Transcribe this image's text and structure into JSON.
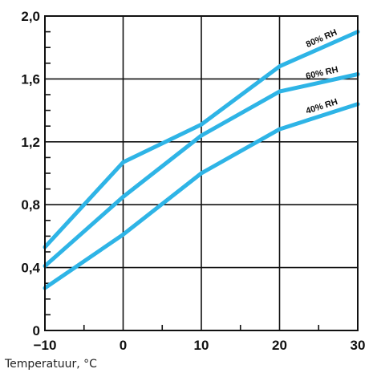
{
  "chart_data": {
    "type": "line",
    "xlabel": "Temperatuur, °C",
    "ylabel": "",
    "title": "",
    "xlim": [
      -10,
      30
    ],
    "ylim": [
      0,
      2.0
    ],
    "x_ticks": [
      -10,
      0,
      10,
      20,
      30
    ],
    "y_ticks": [
      0,
      0.4,
      0.8,
      1.2,
      1.6,
      2.0
    ],
    "x_tick_labels": [
      "−10",
      "0",
      "10",
      "20",
      "30"
    ],
    "y_tick_labels": [
      "0",
      "0,4",
      "0,8",
      "1,2",
      "1,6",
      "2,0"
    ],
    "grid": true,
    "line_color": "#2eb4e6",
    "series": [
      {
        "name": "80% RH",
        "x": [
          -10,
          0,
          10,
          20,
          30
        ],
        "values": [
          0.53,
          1.07,
          1.31,
          1.68,
          1.9
        ]
      },
      {
        "name": "60% RH",
        "x": [
          -10,
          0,
          10,
          20,
          30
        ],
        "values": [
          0.41,
          0.85,
          1.24,
          1.52,
          1.63
        ]
      },
      {
        "name": "40% RH",
        "x": [
          -10,
          0,
          10,
          20,
          30
        ],
        "values": [
          0.27,
          0.61,
          1.0,
          1.28,
          1.44
        ]
      }
    ]
  }
}
